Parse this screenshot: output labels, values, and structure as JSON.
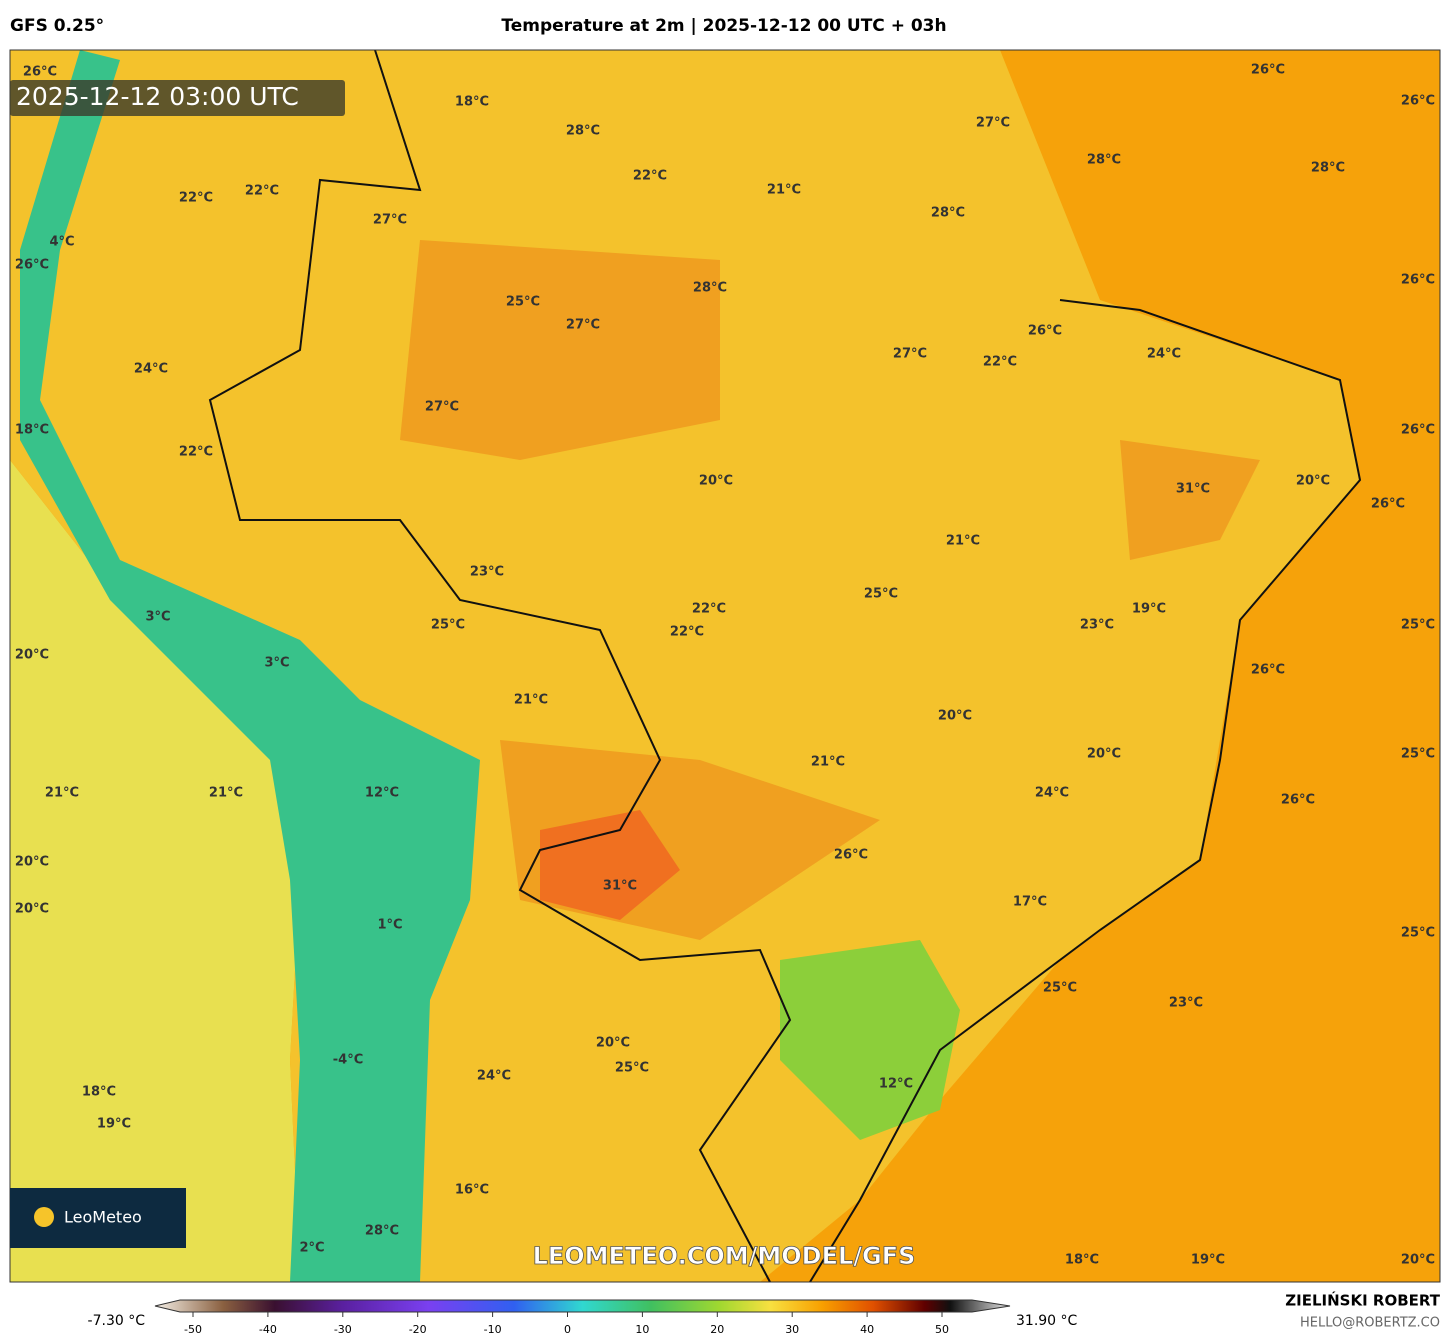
{
  "header": {
    "model": "GFS 0.25°",
    "title": "Temperature at 2m | 2025-12-12 00 UTC + 03h"
  },
  "map": {
    "timestamp": "2025-12-12 03:00 UTC",
    "watermark": "LEOMETEO.COM/MODEL/GFS",
    "logo": "LeoMeteo",
    "labels": [
      "26°C",
      "18°C",
      "28°C",
      "26°C",
      "26°C",
      "27°C",
      "28°C",
      "28°C",
      "22°C",
      "21°C",
      "22°C",
      "22°C",
      "27°C",
      "28°C",
      "4°C",
      "26°C",
      "28°C",
      "26°C",
      "25°C",
      "27°C",
      "26°C",
      "27°C",
      "22°C",
      "24°C",
      "24°C",
      "27°C",
      "18°C",
      "26°C",
      "22°C",
      "20°C",
      "31°C",
      "20°C",
      "26°C",
      "21°C",
      "23°C",
      "25°C",
      "22°C",
      "19°C",
      "22°C",
      "25°C",
      "3°C",
      "23°C",
      "25°C",
      "20°C",
      "3°C",
      "26°C",
      "21°C",
      "20°C",
      "20°C",
      "25°C",
      "21°C",
      "21°C",
      "21°C",
      "12°C",
      "24°C",
      "26°C",
      "20°C",
      "26°C",
      "31°C",
      "20°C",
      "17°C",
      "1°C",
      "25°C",
      "25°C",
      "23°C",
      "20°C",
      "25°C",
      "-4°C",
      "24°C",
      "12°C",
      "18°C",
      "19°C",
      "16°C",
      "28°C",
      "2°C",
      "18°C",
      "19°C",
      "20°C"
    ]
  },
  "colorbar": {
    "min_label": "-7.30 °C",
    "max_label": "31.90 °C",
    "ticks": [
      -50,
      -40,
      -30,
      -20,
      -10,
      0,
      10,
      20,
      30,
      40,
      50
    ]
  },
  "footer": {
    "author": "ZIELIŃSKI ROBERT",
    "contact": "HELLO@ROBERTZ.CO"
  }
}
